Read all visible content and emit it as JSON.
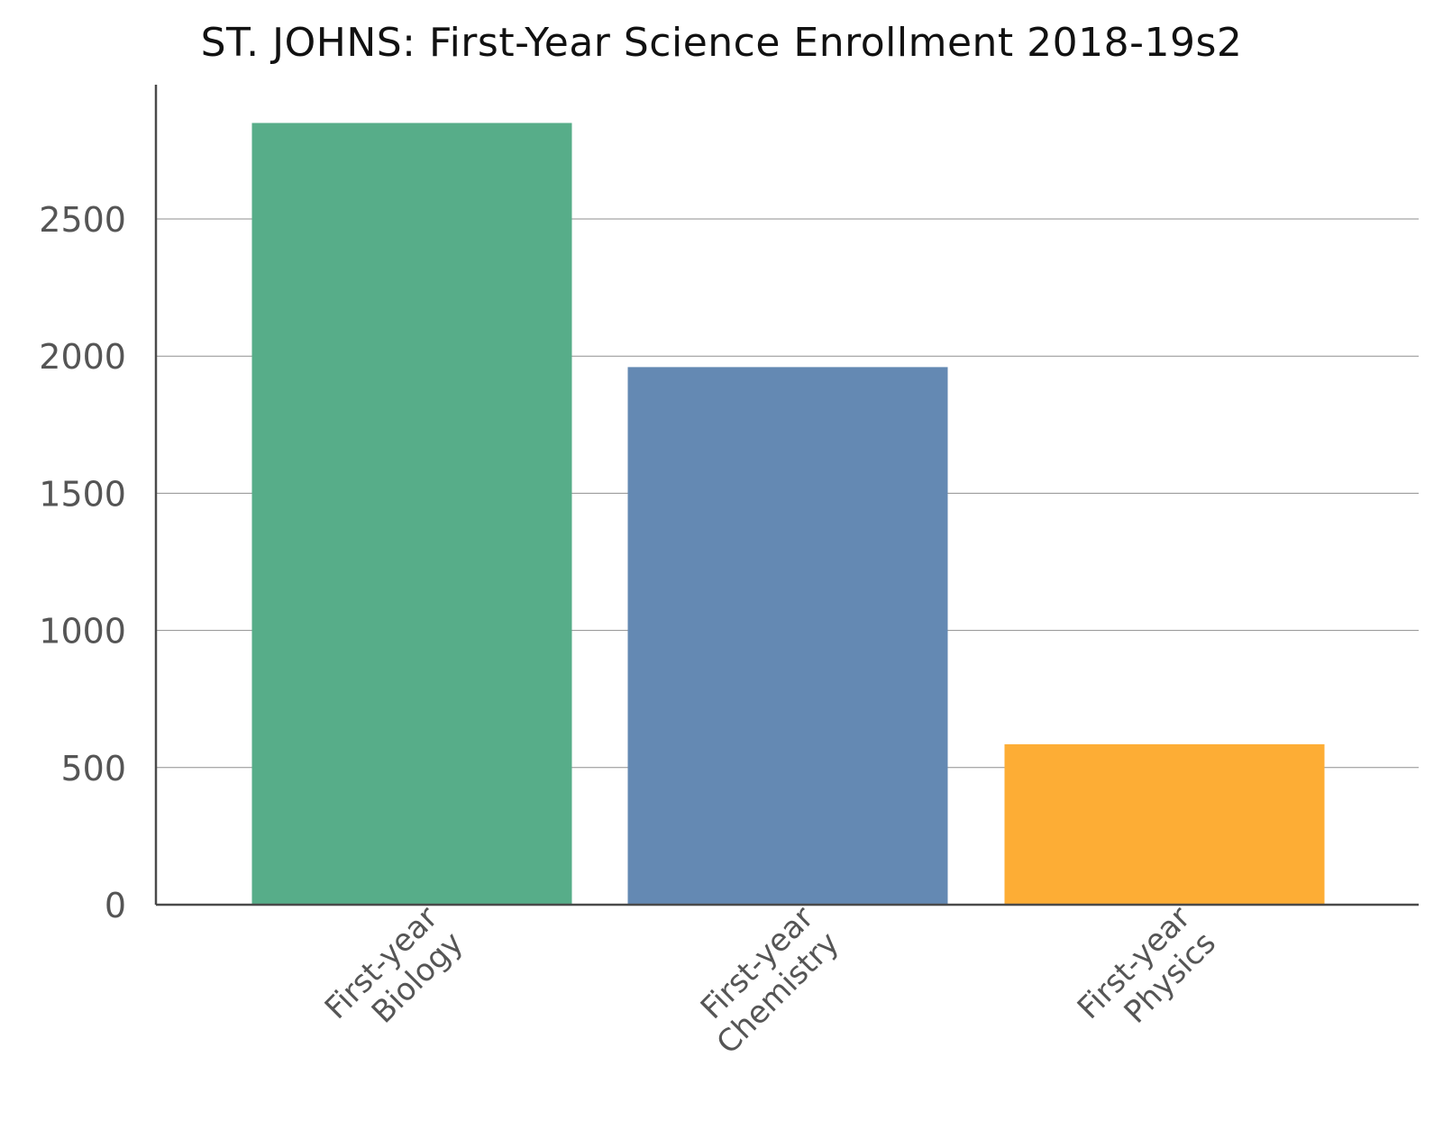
{
  "chart_data": {
    "type": "bar",
    "title": "ST. JOHNS: First-Year Science Enrollment 2018-19s2",
    "xlabel": "",
    "ylabel": "",
    "categories": [
      [
        "First-year",
        "Biology"
      ],
      [
        "First-year",
        "Chemistry"
      ],
      [
        "First-year",
        "Physics"
      ]
    ],
    "values": [
      2850,
      1960,
      585
    ],
    "colors": [
      "#57ad89",
      "#6489b3",
      "#fdad35"
    ],
    "yticks": [
      0,
      500,
      1000,
      1500,
      2000,
      2500
    ],
    "ylim": [
      0,
      3000
    ],
    "grid": true,
    "legend": "none"
  }
}
